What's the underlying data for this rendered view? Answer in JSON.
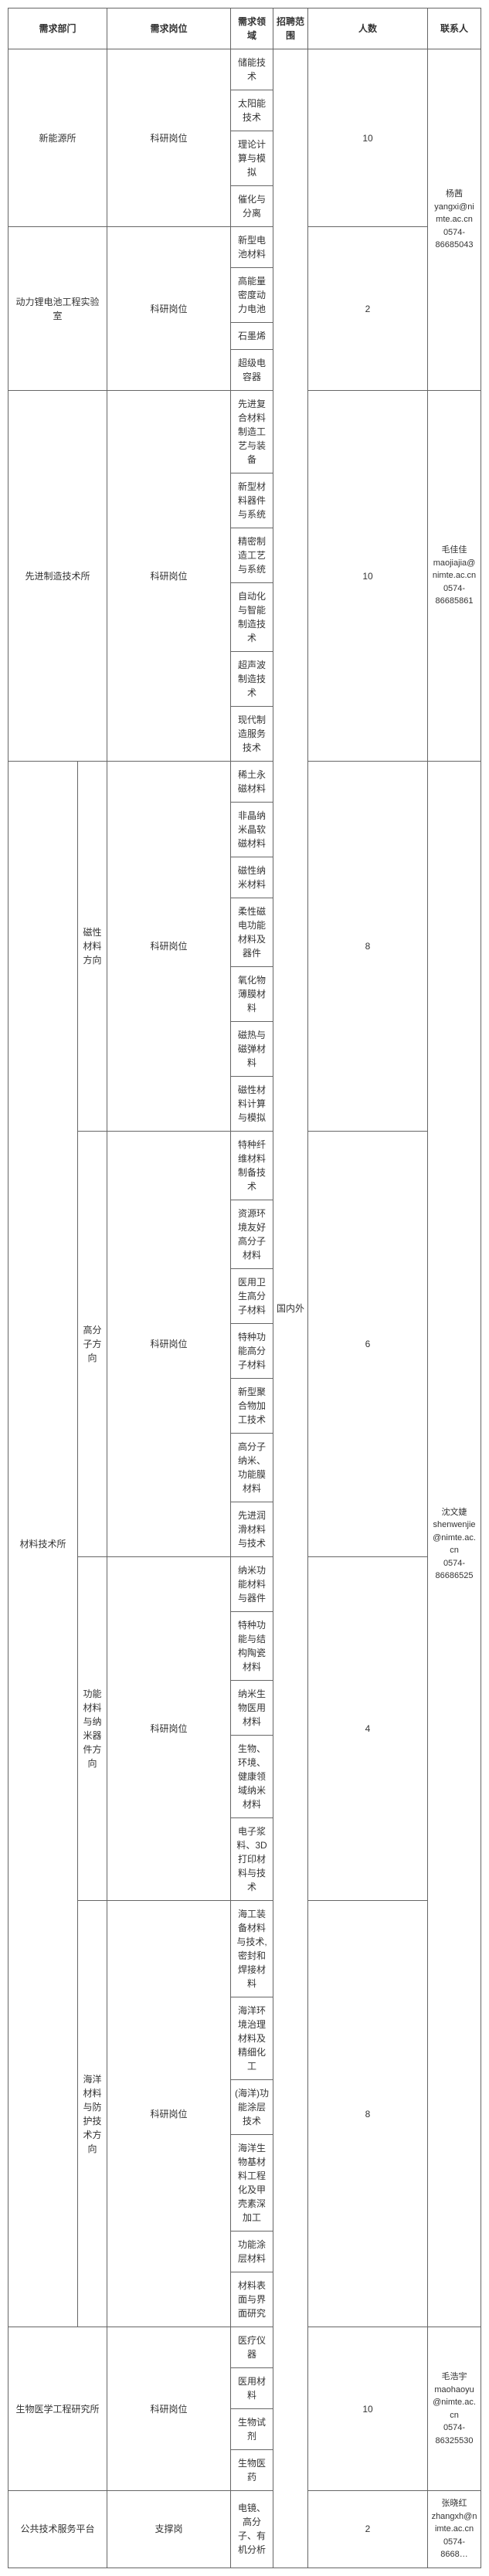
{
  "headers": {
    "dept": "需求部门",
    "post": "需求岗位",
    "field": "需求领域",
    "scope": "招聘范围",
    "count": "人数",
    "contact": "联系人"
  },
  "scope_value": "国内外",
  "r1": {
    "dept": "新能源所",
    "post": "科研岗位",
    "count": "10",
    "f1": "储能技术",
    "f2": "太阳能技术",
    "f3": "理论计算与模拟",
    "f4": "催化与分离"
  },
  "r2": {
    "dept": "动力锂电池工程实验室",
    "post": "科研岗位",
    "count": "2",
    "f1": "新型电池材料",
    "f2": "高能量密度动力电池",
    "f3": "石墨烯",
    "f4": "超级电容器"
  },
  "contact1": {
    "name": "杨茜",
    "email": "yangxi@nimte.ac.cn",
    "phone": "0574-86685043"
  },
  "r3": {
    "dept": "先进制造技术所",
    "post": "科研岗位",
    "count": "10",
    "f1": "先进复合材料制造工艺与装备",
    "f2": "新型材料器件与系统",
    "f3": "精密制造工艺与系统",
    "f4": "自动化与智能制造技术",
    "f5": "超声波制造技术",
    "f6": "现代制造服务技术"
  },
  "contact3": {
    "name": "毛佳佳",
    "email": "maojiajia@nimte.ac.cn",
    "phone": "0574-86685861"
  },
  "r4": {
    "dept": "材料技术所",
    "sub1": "磁性材料方向",
    "post": "科研岗位",
    "count1": "8",
    "s1f1": "稀土永磁材料",
    "s1f2": "非晶纳米晶软磁材料",
    "s1f3": "磁性纳米材料",
    "s1f4": "柔性磁电功能材料及器件",
    "s1f5": "氧化物薄膜材料",
    "s1f6": "磁热与磁弹材料",
    "s1f7": "磁性材料计算与模拟",
    "sub2": "高分子方向",
    "count2": "6",
    "s2f1": "特种纤维材料制备技术",
    "s2f2": "资源环境友好高分子材料",
    "s2f3": "医用卫生高分子材料",
    "s2f4": "特种功能高分子材料",
    "s2f5": "新型聚合物加工技术",
    "s2f6": "高分子纳米、功能膜材料",
    "s2f7": "先进润滑材料与技术",
    "sub3": "功能材料与纳米器件方向",
    "count3": "4",
    "s3f1": "纳米功能材料与器件",
    "s3f2": "特种功能与结构陶瓷材料",
    "s3f3": "纳米生物医用材料",
    "s3f4": "生物、环境、健康领域纳米材料",
    "s3f5": "电子浆料、3D打印材料与技术",
    "sub4": "海洋材料与防护技术方向",
    "count4": "8",
    "s4f1": "海工装备材料与技术, 密封和焊接材料",
    "s4f2": "海洋环境治理材料及精细化工",
    "s4f3": "(海洋)功能涂层技术",
    "s4f4": "海洋生物基材料工程化及甲壳素深加工",
    "s4f5": "功能涂层材料",
    "s4f6": "材料表面与界面研究"
  },
  "contact4": {
    "name": "沈文婕",
    "email": "shenwenjie@nimte.ac.cn",
    "phone": "0574-86686525"
  },
  "r5": {
    "dept": "生物医学工程研究所",
    "post": "科研岗位",
    "count": "10",
    "f1": "医疗仪器",
    "f2": "医用材料",
    "f3": "生物试剂",
    "f4": "生物医药"
  },
  "contact5": {
    "name": "毛浩宇",
    "email": "maohaoyu@nimte.ac.cn",
    "phone": "0574-86325530"
  },
  "r6": {
    "dept": "公共技术服务平台",
    "post": "支撑岗",
    "count": "2",
    "f1": "电镜、高分子、有机分析"
  },
  "contact6": {
    "name": "张晓红",
    "email": "zhangxh@nimte.ac.cn",
    "phone": "0574-8668…"
  }
}
